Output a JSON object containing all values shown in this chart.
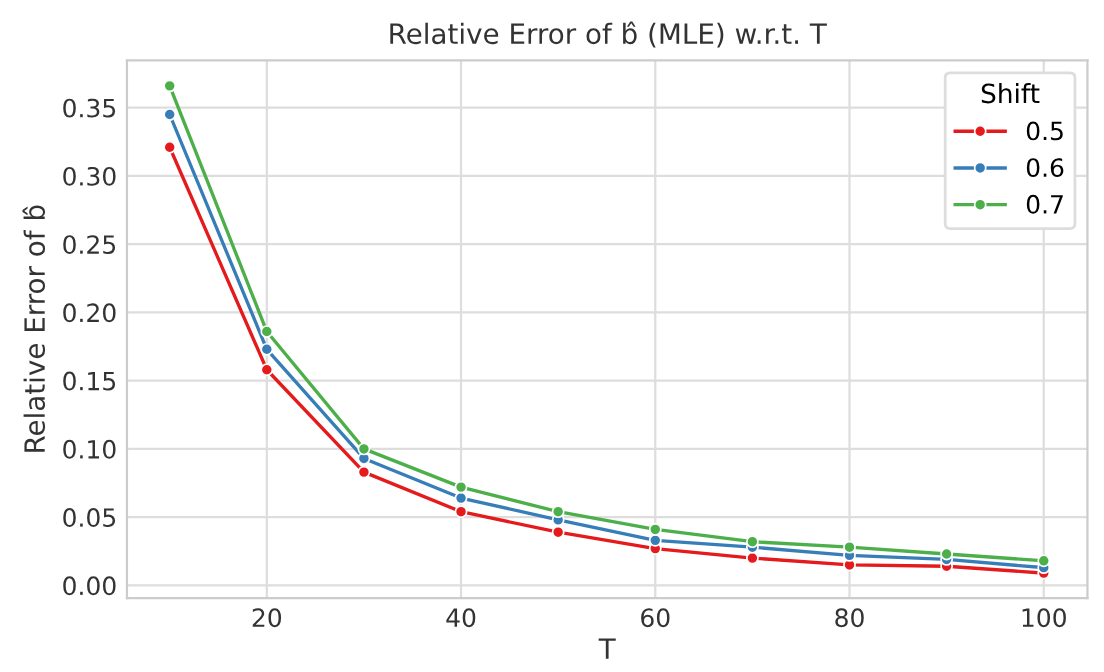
{
  "chart_data": {
    "type": "line",
    "title": "Relative Error of b̂ (MLE) w.r.t. T",
    "xlabel": "T",
    "ylabel": "Relative Error of b̂",
    "legend_title": "Shift",
    "x": [
      10,
      20,
      30,
      40,
      50,
      60,
      70,
      80,
      90,
      100
    ],
    "series": [
      {
        "name": "0.5",
        "color": "#e41a1c",
        "values": [
          0.321,
          0.158,
          0.083,
          0.054,
          0.039,
          0.027,
          0.02,
          0.015,
          0.014,
          0.009
        ]
      },
      {
        "name": "0.6",
        "color": "#377eb8",
        "values": [
          0.345,
          0.173,
          0.093,
          0.064,
          0.048,
          0.033,
          0.028,
          0.022,
          0.019,
          0.013
        ]
      },
      {
        "name": "0.7",
        "color": "#4daf4a",
        "values": [
          0.366,
          0.186,
          0.1,
          0.072,
          0.054,
          0.041,
          0.032,
          0.028,
          0.023,
          0.018
        ]
      }
    ],
    "xlim": [
      5.6,
      104.5
    ],
    "ylim": [
      -0.0093,
      0.3846
    ],
    "xticks": [
      20,
      40,
      60,
      80,
      100
    ],
    "yticks": [
      {
        "value": 0,
        "label": "0.00"
      },
      {
        "value": 0.05,
        "label": "0.05"
      },
      {
        "value": 0.1,
        "label": "0.10"
      },
      {
        "value": 0.15,
        "label": "0.15"
      },
      {
        "value": 0.2,
        "label": "0.20"
      },
      {
        "value": 0.25,
        "label": "0.25"
      },
      {
        "value": 0.3,
        "label": "0.30"
      },
      {
        "value": 0.35,
        "label": "0.35"
      }
    ],
    "grid": true,
    "legend": "top right",
    "marker": "circle",
    "line_style": "solid"
  }
}
